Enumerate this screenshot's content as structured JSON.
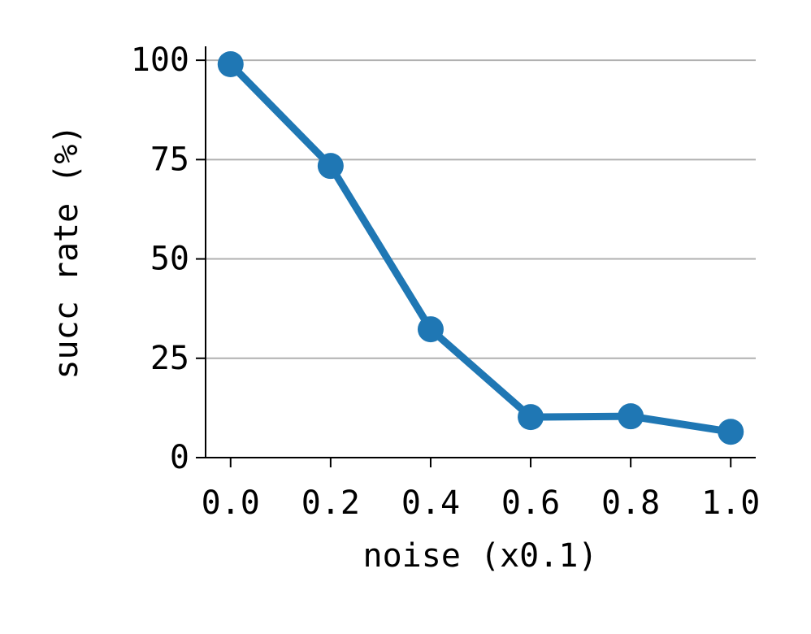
{
  "chart_data": {
    "type": "line",
    "x_label": "noise (x0.1)",
    "y_label": "succ rate (%)",
    "x": [
      0.0,
      0.2,
      0.4,
      0.6,
      0.8,
      1.0
    ],
    "series": [
      {
        "color": "#1f77b4",
        "values": [
          99,
          73.4,
          32.3,
          10.2,
          10.4,
          6.5
        ]
      }
    ],
    "xlim": [
      -0.05,
      1.05
    ],
    "xticks": [
      {
        "value": 0,
        "label": "0.0"
      },
      0.2,
      0.4,
      0.6,
      0.8,
      {
        "value": 1,
        "label": "1.0"
      }
    ],
    "ylim": [
      0,
      103.5
    ],
    "yticks": [
      0,
      25,
      50,
      75,
      100
    ],
    "grid": "y"
  }
}
